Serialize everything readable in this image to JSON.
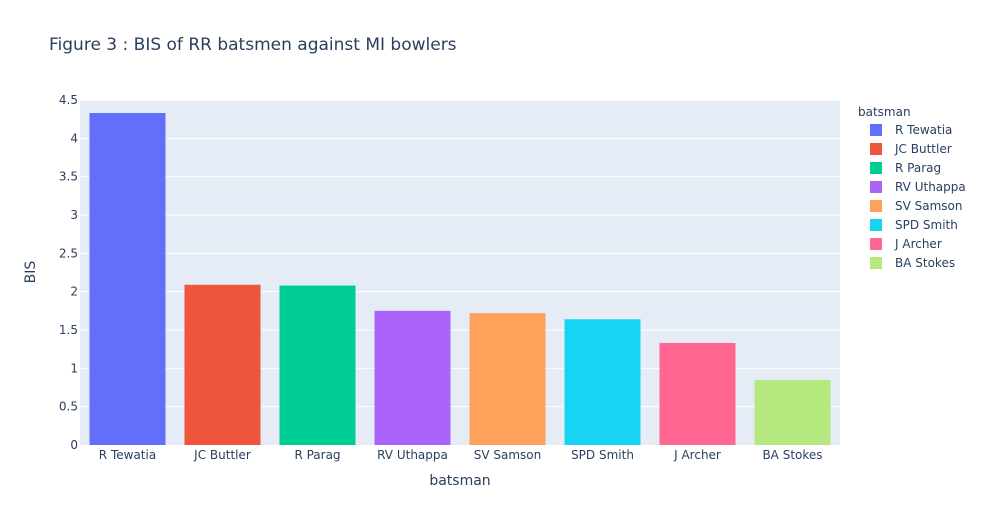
{
  "chart_data": {
    "type": "bar",
    "title": "Figure 3 : BIS of RR batsmen against MI bowlers",
    "xlabel": "batsman",
    "ylabel": "BIS",
    "ylim": [
      0,
      4.5
    ],
    "yticks": [
      0,
      0.5,
      1,
      1.5,
      2,
      2.5,
      3,
      3.5,
      4,
      4.5
    ],
    "ytick_labels": [
      "0",
      "0.5",
      "1",
      "1.5",
      "2",
      "2.5",
      "3",
      "3.5",
      "4",
      "4.5"
    ],
    "grid": true,
    "legend_title": "batsman",
    "legend_position": "right",
    "categories": [
      "R Tewatia",
      "JC Buttler",
      "R Parag",
      "RV Uthappa",
      "SV Samson",
      "SPD Smith",
      "J Archer",
      "BA Stokes"
    ],
    "values": [
      4.33,
      2.09,
      2.08,
      1.75,
      1.72,
      1.64,
      1.33,
      0.85
    ],
    "colors": [
      "#636efa",
      "#ef553b",
      "#00cc96",
      "#ab63fa",
      "#ffa15a",
      "#19d3f3",
      "#ff6692",
      "#b6e880"
    ],
    "plot_bg": "#e5ecf6",
    "grid_color": "#ffffff",
    "text_color": "#2a3f5f"
  }
}
